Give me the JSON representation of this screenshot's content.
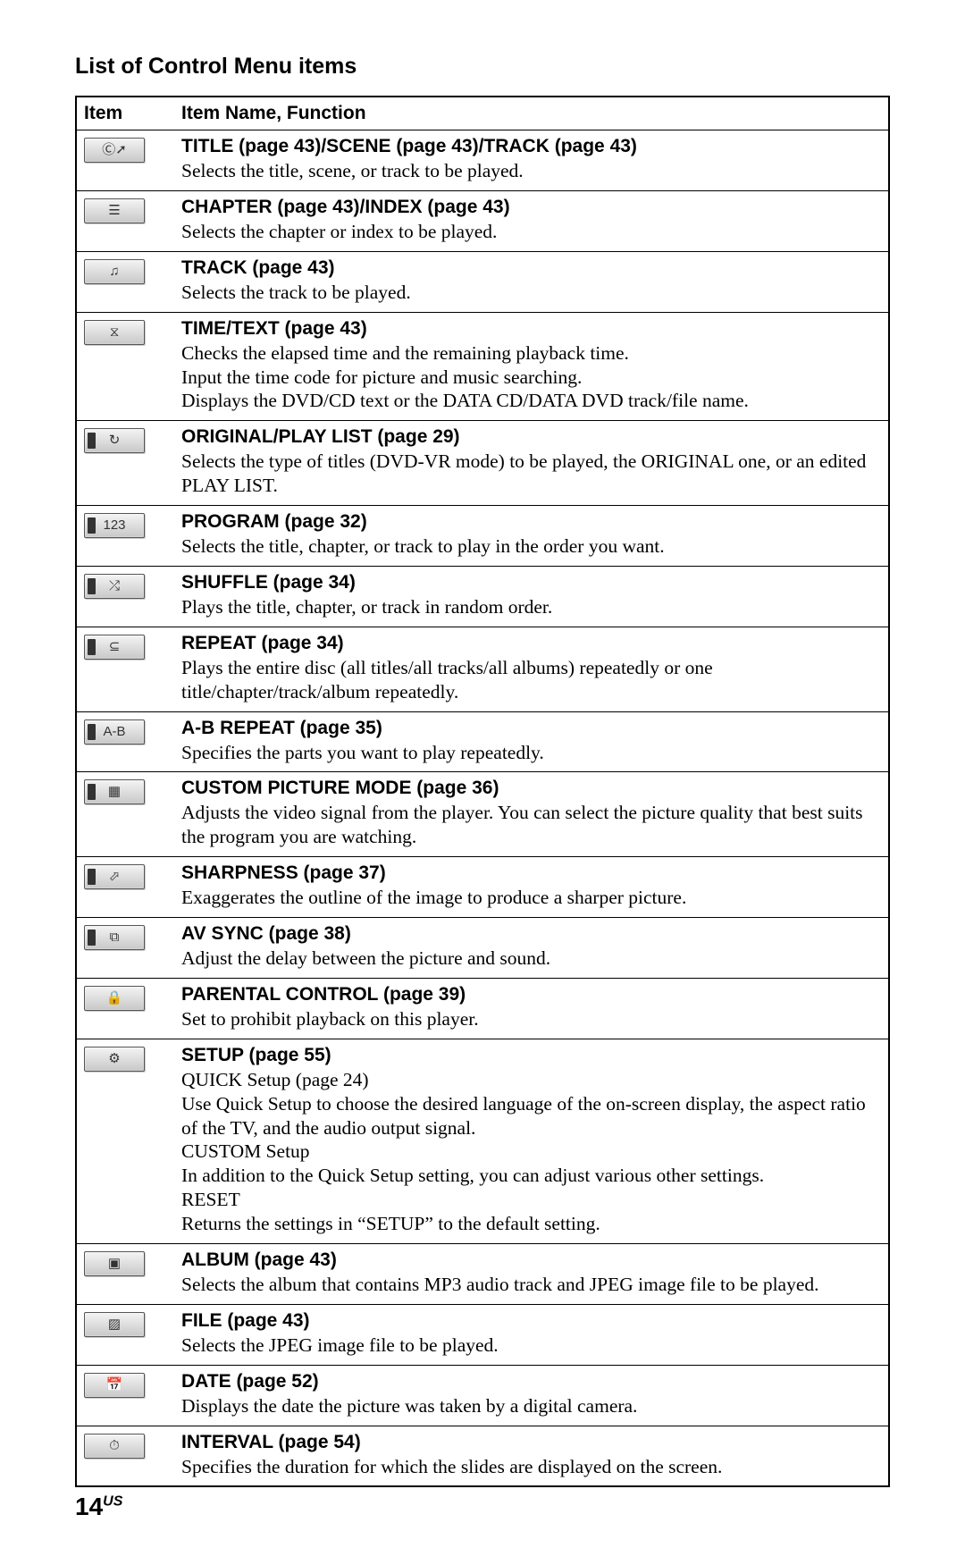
{
  "heading": "List of Control Menu items",
  "header": {
    "col1": "Item",
    "col2": "Item Name, Function"
  },
  "rows": [
    {
      "icon": "title",
      "flag": false,
      "name": "TITLE (page 43)/SCENE (page 43)/TRACK (page 43)",
      "desc": "Selects the title, scene, or track to be played."
    },
    {
      "icon": "chapter",
      "flag": false,
      "name": "CHAPTER (page 43)/INDEX (page 43)",
      "desc": "Selects the chapter or index to be played."
    },
    {
      "icon": "track",
      "flag": false,
      "name": "TRACK (page 43)",
      "desc": "Selects the track to be played."
    },
    {
      "icon": "time",
      "flag": false,
      "name": "TIME/TEXT (page 43)",
      "desc": "Checks the elapsed time and the remaining playback time.\nInput the time code for picture and music searching.\nDisplays the DVD/CD text or the DATA CD/DATA DVD track/file name."
    },
    {
      "icon": "original",
      "flag": true,
      "name": "ORIGINAL/PLAY LIST (page 29)",
      "desc": "Selects the type of titles (DVD-VR mode) to be played, the ORIGINAL one, or an edited PLAY LIST."
    },
    {
      "icon": "program",
      "flag": true,
      "name": "PROGRAM (page 32)",
      "desc": "Selects the title, chapter, or track to play in the order you want."
    },
    {
      "icon": "shuffle",
      "flag": true,
      "name": "SHUFFLE (page 34)",
      "desc": "Plays the title, chapter, or track in random order."
    },
    {
      "icon": "repeat",
      "flag": true,
      "name": "REPEAT (page 34)",
      "desc": "Plays the entire disc (all titles/all tracks/all albums) repeatedly or one title/chapter/track/album repeatedly."
    },
    {
      "icon": "abrepeat",
      "flag": true,
      "name": "A-B REPEAT (page 35)",
      "desc": "Specifies the parts you want to play repeatedly."
    },
    {
      "icon": "picture",
      "flag": true,
      "name": "CUSTOM PICTURE MODE (page 36)",
      "desc": "Adjusts the video signal from the player. You can select the picture quality that best suits the program you are watching."
    },
    {
      "icon": "sharp",
      "flag": true,
      "name": "SHARPNESS (page 37)",
      "desc": "Exaggerates the outline of the image to produce a sharper picture."
    },
    {
      "icon": "avsync",
      "flag": true,
      "name": "AV SYNC (page 38)",
      "desc": "Adjust the delay between the picture and sound."
    },
    {
      "icon": "parental",
      "flag": false,
      "name": "PARENTAL CONTROL (page 39)",
      "desc": "Set to prohibit playback on this player."
    },
    {
      "icon": "setup",
      "flag": false,
      "name": "SETUP (page 55)",
      "desc": "QUICK Setup (page 24)\nUse Quick Setup to choose the desired language of the on-screen display, the aspect ratio of the TV, and the audio output signal.\nCUSTOM Setup\nIn addition to the Quick Setup setting, you can adjust various other settings.\nRESET\nReturns the settings in “SETUP” to the default setting."
    },
    {
      "icon": "album",
      "flag": false,
      "name": "ALBUM (page 43)",
      "desc": "Selects the album that contains MP3 audio track and JPEG image file to be played."
    },
    {
      "icon": "file",
      "flag": false,
      "name": "FILE (page 43)",
      "desc": "Selects the JPEG image file to be played."
    },
    {
      "icon": "date",
      "flag": false,
      "name": "DATE (page 52)",
      "desc": "Displays the date the picture was taken by a digital camera."
    },
    {
      "icon": "interval",
      "flag": false,
      "name": "INTERVAL (page 54)",
      "desc": "Specifies the duration for which the slides are displayed on the screen."
    }
  ],
  "pageNumber": "14",
  "pageRegion": "US",
  "iconGlyphs": {
    "title": "Ⓒ➚",
    "chapter": "☰",
    "track": "♫",
    "time": "⧖",
    "original": "↻",
    "program": "123",
    "shuffle": "⤮",
    "repeat": "⊆",
    "abrepeat": "A‑B",
    "picture": "▦",
    "sharp": "⬀",
    "avsync": "⧉",
    "parental": "🔒",
    "setup": "⚙",
    "album": "▣",
    "file": "▨",
    "date": "📅",
    "interval": "⏱"
  }
}
